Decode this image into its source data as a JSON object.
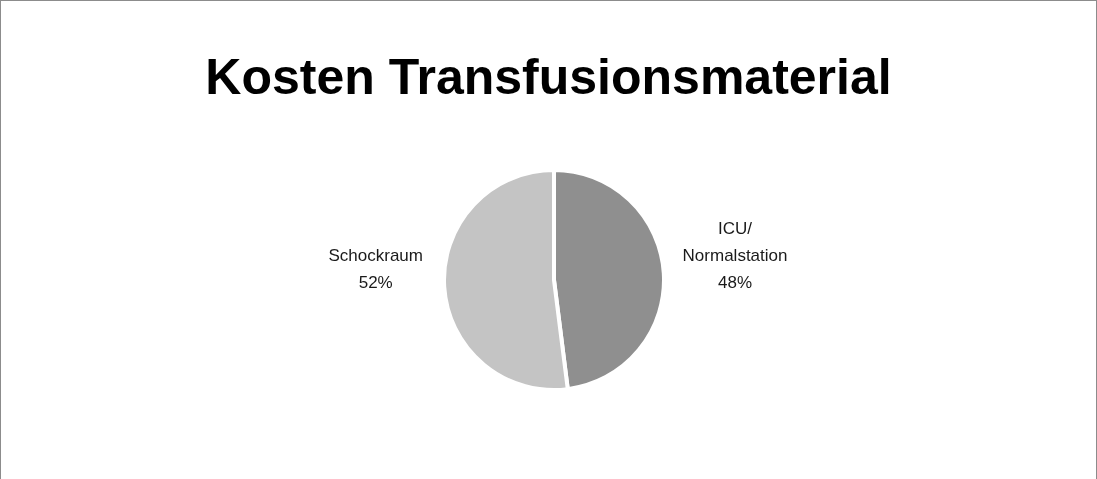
{
  "chart_data": {
    "type": "pie",
    "title": "Kosten Transfusionsmaterial",
    "categories": [
      "ICU/ Normalstation",
      "Schockraum"
    ],
    "values": [
      48,
      52
    ],
    "colors": [
      "#8f8f8f",
      "#c4c4c4"
    ],
    "value_labels": [
      "48%",
      "52%"
    ]
  }
}
